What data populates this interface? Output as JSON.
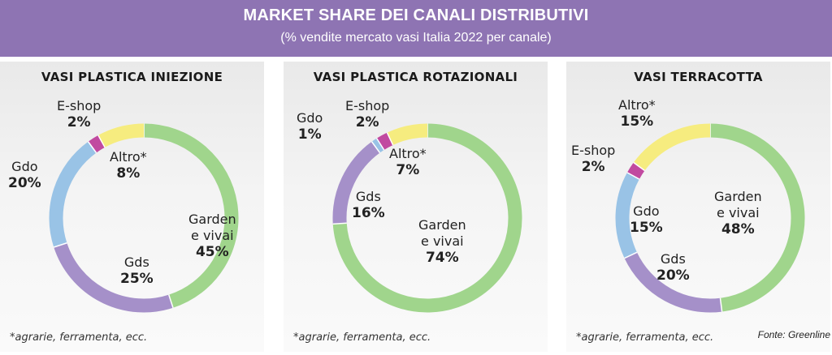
{
  "header": {
    "title": "MARKET SHARE DEI CANALI DISTRIBUTIVI",
    "subtitle": "(% vendite mercato vasi Italia 2022 per canale)"
  },
  "colors": {
    "header_bg": "#8e74b3",
    "Garden e vivai": "#a0d58c",
    "Gds": "#a590c9",
    "Gdo": "#99c3e6",
    "E-shop": "#c14aa0",
    "Altro*": "#f6ec7f"
  },
  "footnote": "*agrarie, ferramenta, ecc.",
  "source": "Fonte: Greenline",
  "chart_data": [
    {
      "type": "pie",
      "title": "VASI PLASTICA INIEZIONE",
      "slices": [
        {
          "name": "Garden e vivai",
          "value": 45,
          "label": "45%"
        },
        {
          "name": "Gds",
          "value": 25,
          "label": "25%"
        },
        {
          "name": "Gdo",
          "value": 20,
          "label": "20%"
        },
        {
          "name": "E-shop",
          "value": 2,
          "label": "2%"
        },
        {
          "name": "Altro*",
          "value": 8,
          "label": "8%"
        }
      ]
    },
    {
      "type": "pie",
      "title": "VASI PLASTICA ROTAZIONALI",
      "slices": [
        {
          "name": "Garden e vivai",
          "value": 74,
          "label": "74%"
        },
        {
          "name": "Gds",
          "value": 16,
          "label": "16%"
        },
        {
          "name": "Gdo",
          "value": 1,
          "label": "1%"
        },
        {
          "name": "E-shop",
          "value": 2,
          "label": "2%"
        },
        {
          "name": "Altro*",
          "value": 7,
          "label": "7%"
        }
      ]
    },
    {
      "type": "pie",
      "title": "VASI TERRACOTTA",
      "slices": [
        {
          "name": "Garden e vivai",
          "value": 48,
          "label": "48%"
        },
        {
          "name": "Gds",
          "value": 20,
          "label": "20%"
        },
        {
          "name": "Gdo",
          "value": 15,
          "label": "15%"
        },
        {
          "name": "E-shop",
          "value": 2,
          "label": "2%"
        },
        {
          "name": "Altro*",
          "value": 15,
          "label": "15%"
        }
      ]
    }
  ]
}
